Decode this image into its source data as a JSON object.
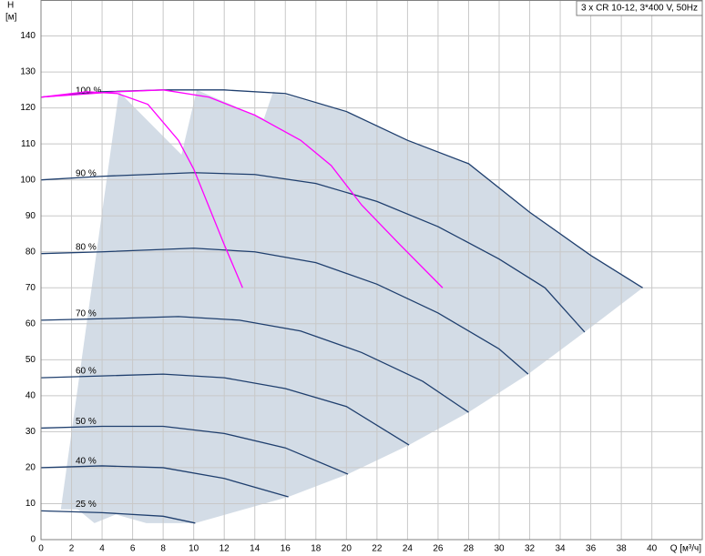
{
  "chart_data": {
    "type": "line",
    "title": "3 x CR 10-12, 3*400 V, 50Hz",
    "y_label": "H",
    "y_unit": "[м]",
    "x_label": "Q [м³/ч]",
    "xlim": [
      0,
      43.3
    ],
    "ylim": [
      0,
      150
    ],
    "xticks": [
      0,
      2,
      4,
      6,
      8,
      10,
      12,
      14,
      16,
      18,
      20,
      22,
      24,
      26,
      28,
      30,
      32,
      34,
      36,
      38,
      40
    ],
    "yticks": [
      0,
      10,
      20,
      30,
      40,
      50,
      60,
      70,
      80,
      90,
      100,
      110,
      120,
      130,
      140
    ],
    "grid": true,
    "area": {
      "color": "#d3dce6",
      "x": [
        1.3,
        5.1,
        9.2,
        10.2,
        14.6,
        15.2,
        20,
        24,
        28,
        32,
        36,
        39.4,
        35.6,
        31.9,
        28.0,
        24.1,
        20.1,
        16.2,
        10.1,
        6.9,
        4.9,
        3.5,
        2.4
      ],
      "values": [
        8.4,
        124.5,
        107,
        125,
        117,
        124.5,
        119,
        111,
        104.5,
        91,
        79,
        70,
        57.7,
        46,
        35.4,
        26.3,
        18.2,
        11.9,
        4.6,
        4.6,
        7,
        4.6,
        8.4
      ]
    },
    "series": [
      {
        "name": "100 %",
        "color": "#1f3f6e",
        "x": [
          0,
          4,
          8,
          12,
          16,
          20,
          24,
          28,
          32,
          36,
          39.4
        ],
        "values": [
          123,
          124.5,
          125,
          125,
          124,
          119,
          111,
          104.5,
          91,
          79,
          70
        ]
      },
      {
        "name": "90 %",
        "color": "#1f3f6e",
        "x": [
          0,
          4,
          10,
          14,
          18,
          22,
          26,
          30,
          33,
          35.6
        ],
        "values": [
          100,
          101,
          102,
          101.5,
          99,
          94,
          87,
          78,
          70,
          57.7
        ]
      },
      {
        "name": "80 %",
        "color": "#1f3f6e",
        "x": [
          0,
          4,
          10,
          14,
          18,
          22,
          26,
          30,
          31.9
        ],
        "values": [
          79.5,
          80,
          81,
          80,
          77,
          71,
          63,
          53,
          46
        ]
      },
      {
        "name": "70 %",
        "color": "#1f3f6e",
        "x": [
          0,
          5,
          9,
          13,
          17,
          21,
          25,
          28.0
        ],
        "values": [
          61,
          61.5,
          62,
          61,
          58,
          52,
          44,
          35.4
        ]
      },
      {
        "name": "60 %",
        "color": "#1f3f6e",
        "x": [
          0,
          4,
          8,
          12,
          16,
          20,
          24.1
        ],
        "values": [
          45,
          45.5,
          46,
          45,
          42,
          37,
          26.3
        ]
      },
      {
        "name": "50 %",
        "color": "#1f3f6e",
        "x": [
          0,
          4,
          8,
          12,
          16,
          20.1
        ],
        "values": [
          31,
          31.5,
          31.5,
          29.5,
          25.5,
          18.2
        ]
      },
      {
        "name": "40 %",
        "color": "#1f3f6e",
        "x": [
          0,
          4,
          8,
          12,
          16.2
        ],
        "values": [
          20,
          20.5,
          20,
          17,
          11.9
        ]
      },
      {
        "name": "25 %",
        "color": "#1f3f6e",
        "x": [
          0,
          4,
          8,
          10.1
        ],
        "values": [
          8,
          7.5,
          6.5,
          4.6
        ]
      },
      {
        "color": "#ff00ff",
        "x": [
          0,
          3,
          5,
          7,
          9,
          10,
          12,
          13.2
        ],
        "values": [
          123,
          124.5,
          124,
          121,
          111,
          103,
          82,
          70
        ]
      },
      {
        "color": "#ff00ff",
        "x": [
          0,
          5,
          8,
          11,
          14,
          17,
          19,
          21,
          23.5,
          26.3
        ],
        "values": [
          123,
          124.5,
          125,
          123,
          118,
          111,
          104,
          93,
          82,
          70
        ]
      }
    ]
  }
}
